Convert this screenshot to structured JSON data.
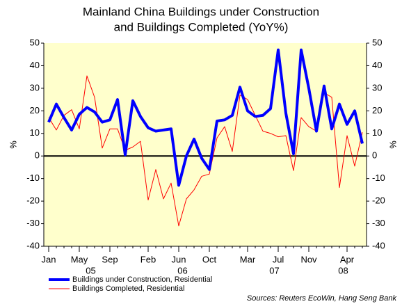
{
  "chart_data": {
    "type": "line",
    "title": [
      "Mainland China Buildings under Construction",
      "and Buildings Completed (YoY%)"
    ],
    "y_label": "%",
    "y2_label": "%",
    "source": "Sources: Reuters EcoWin, Hang Seng Bank",
    "categories": [
      "Jan",
      null,
      null,
      null,
      "May",
      null,
      null,
      null,
      "Sep",
      null,
      null,
      null,
      null,
      "Feb",
      null,
      null,
      null,
      "Jun",
      null,
      null,
      null,
      "Oct",
      null,
      null,
      null,
      null,
      "Mar",
      null,
      null,
      null,
      "Jul",
      null,
      null,
      null,
      "Nov",
      null,
      null,
      null,
      null,
      "Apr",
      null,
      null
    ],
    "years": [
      "05",
      "06",
      "07",
      "08"
    ],
    "series": [
      {
        "name": "Buildings under Construction, Residential",
        "color": "#0000ff",
        "values": [
          15,
          23,
          17,
          11.5,
          18.5,
          21.5,
          19.5,
          15,
          16,
          25,
          0.5,
          24.5,
          17.5,
          12.5,
          11,
          11.5,
          12,
          -13,
          0,
          7.5,
          -1,
          -6,
          15.5,
          16,
          18,
          30.5,
          20,
          17.5,
          18,
          21,
          47,
          19,
          1,
          47,
          30,
          11,
          31,
          12,
          23,
          14,
          20,
          5.5
        ]
      },
      {
        "name": "Buildings Completed, Residential",
        "color": "#ff0000",
        "values": [
          17,
          11.5,
          18,
          20.5,
          12,
          35.5,
          26,
          3.5,
          12,
          12,
          2.5,
          4,
          6.5,
          -19.5,
          -6,
          -19,
          -12,
          -31,
          -19,
          -15,
          -9,
          -8,
          8,
          13,
          2,
          27,
          25,
          18,
          11,
          10,
          8.5,
          9,
          -6.5,
          17,
          13,
          11,
          28,
          26,
          -14,
          9,
          -4.5,
          10.5
        ]
      }
    ],
    "ylim": [
      -40,
      50
    ],
    "yticks": [
      -40,
      -30,
      -20,
      -10,
      0,
      10,
      20,
      30,
      40,
      50
    ],
    "y2lim": [
      -40,
      50
    ],
    "y2ticks": [
      -40,
      -30,
      -20,
      -10,
      0,
      10,
      20,
      30,
      40,
      50
    ],
    "zero_line": true,
    "plot_background": "#ffffcc"
  }
}
